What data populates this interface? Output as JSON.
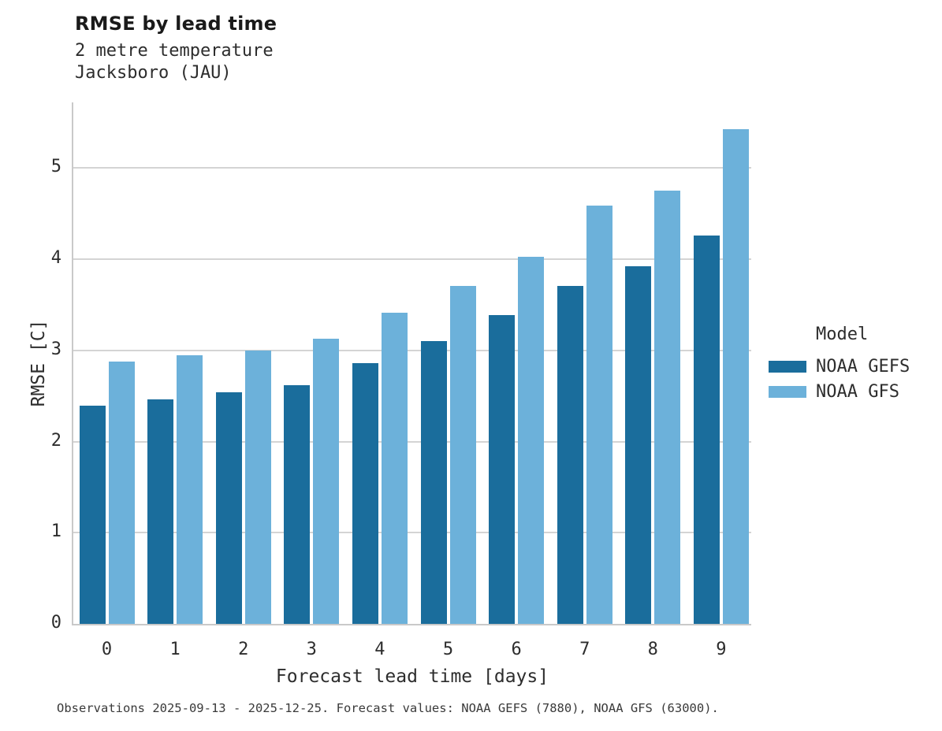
{
  "header": {
    "title": "RMSE by lead time",
    "subtitle_line1": "2 metre temperature",
    "subtitle_line2": "Jacksboro (JAU)"
  },
  "chart_data": {
    "type": "bar",
    "title": "RMSE by lead time",
    "subtitle": [
      "2 metre temperature",
      "Jacksboro (JAU)"
    ],
    "categories": [
      "0",
      "1",
      "2",
      "3",
      "4",
      "5",
      "6",
      "7",
      "8",
      "9"
    ],
    "series": [
      {
        "name": "NOAA GEFS",
        "color": "#1a6d9c",
        "values": [
          2.39,
          2.46,
          2.54,
          2.62,
          2.86,
          3.1,
          3.39,
          3.71,
          3.92,
          4.26
        ]
      },
      {
        "name": "NOAA GFS",
        "color": "#6cb1da",
        "values": [
          2.88,
          2.95,
          3.0,
          3.13,
          3.41,
          3.71,
          4.03,
          4.59,
          4.75,
          5.43
        ]
      }
    ],
    "xlabel": "Forecast lead time [days]",
    "ylabel": "RMSE [C]",
    "ylim": [
      0,
      5.72
    ],
    "yticks": [
      0,
      1,
      2,
      3,
      4,
      5
    ],
    "grid": "horizontal",
    "grid_color": "#d4d4d4",
    "legend_title": "Model",
    "legend_position": "right"
  },
  "legend": {
    "title": "Model",
    "items": [
      {
        "label": "NOAA GEFS",
        "color": "#1a6d9c"
      },
      {
        "label": "NOAA GFS",
        "color": "#6cb1da"
      }
    ]
  },
  "caption": "Observations 2025-09-13 - 2025-12-25. Forecast values: NOAA GEFS (7880), NOAA GFS (63000)."
}
